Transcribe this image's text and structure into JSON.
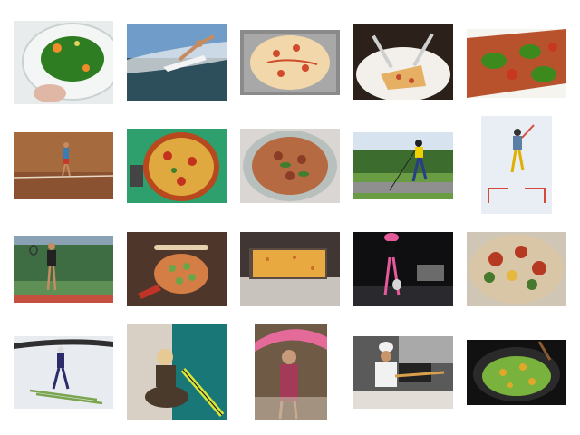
{
  "gallery": {
    "items": [
      {
        "subject": "salad-bowl",
        "colors": [
          "#e9ecec",
          "#2f7d22",
          "#f08c2a"
        ]
      },
      {
        "subject": "surfer",
        "colors": [
          "#6f9cc9",
          "#2d4f5c",
          "#f2f2f2"
        ]
      },
      {
        "subject": "pizza-on-foil",
        "colors": [
          "#8a8a8a",
          "#f1d7a9",
          "#d04a2c"
        ]
      },
      {
        "subject": "pizza-slice-knife-fork",
        "colors": [
          "#2b211a",
          "#f3f0ec",
          "#e5b063"
        ]
      },
      {
        "subject": "pizza-closeup-greens",
        "colors": [
          "#f6f4ef",
          "#3c8a1e",
          "#c8371f"
        ]
      },
      {
        "subject": "tennis-player-clay",
        "colors": [
          "#a56a3d",
          "#8a5230",
          "#3a7db5"
        ]
      },
      {
        "subject": "pizza-on-green-table",
        "colors": [
          "#2ea06e",
          "#b8481e",
          "#e0a93f"
        ]
      },
      {
        "subject": "pizza-on-white-plate",
        "colors": [
          "#dad6d3",
          "#b56a41",
          "#3d7f2f"
        ]
      },
      {
        "subject": "roller-skier",
        "colors": [
          "#6a9c43",
          "#3d6d2e",
          "#f1d200"
        ]
      },
      {
        "subject": "skier-snow",
        "colors": [
          "#e9eef4",
          "#5b7ea5",
          "#d44a3a"
        ]
      },
      {
        "subject": "tennis-player-court",
        "colors": [
          "#3e6d43",
          "#c65040",
          "#8aa1b3"
        ]
      },
      {
        "subject": "pizza-on-wood-board",
        "colors": [
          "#3a2a22",
          "#d47d44",
          "#69a64a"
        ]
      },
      {
        "subject": "pizza-on-baking-tray",
        "colors": [
          "#403735",
          "#e9a941",
          "#c8c3bd"
        ]
      },
      {
        "subject": "night-tennis-player",
        "colors": [
          "#0f0f12",
          "#e45a9a",
          "#d6d6d6"
        ]
      },
      {
        "subject": "pizza-vegetables",
        "colors": [
          "#cfc6b6",
          "#b63a22",
          "#e6b83f"
        ]
      },
      {
        "subject": "ski-jumper",
        "colors": [
          "#e8ecf1",
          "#2c2c6a",
          "#7aa54e"
        ]
      },
      {
        "subject": "woman-with-skateboard",
        "colors": [
          "#1a7777",
          "#d8d0c5",
          "#d8e63a"
        ]
      },
      {
        "subject": "woman-with-umbrella",
        "colors": [
          "#6f5a45",
          "#e46a9a",
          "#c7b7a6"
        ]
      },
      {
        "subject": "pizza-chef-oven",
        "colors": [
          "#5a5a5a",
          "#f1f1f1",
          "#d9a04c"
        ]
      },
      {
        "subject": "vegetable-stirfry-wok",
        "colors": [
          "#111111",
          "#79b23c",
          "#e0a82a"
        ]
      }
    ]
  }
}
